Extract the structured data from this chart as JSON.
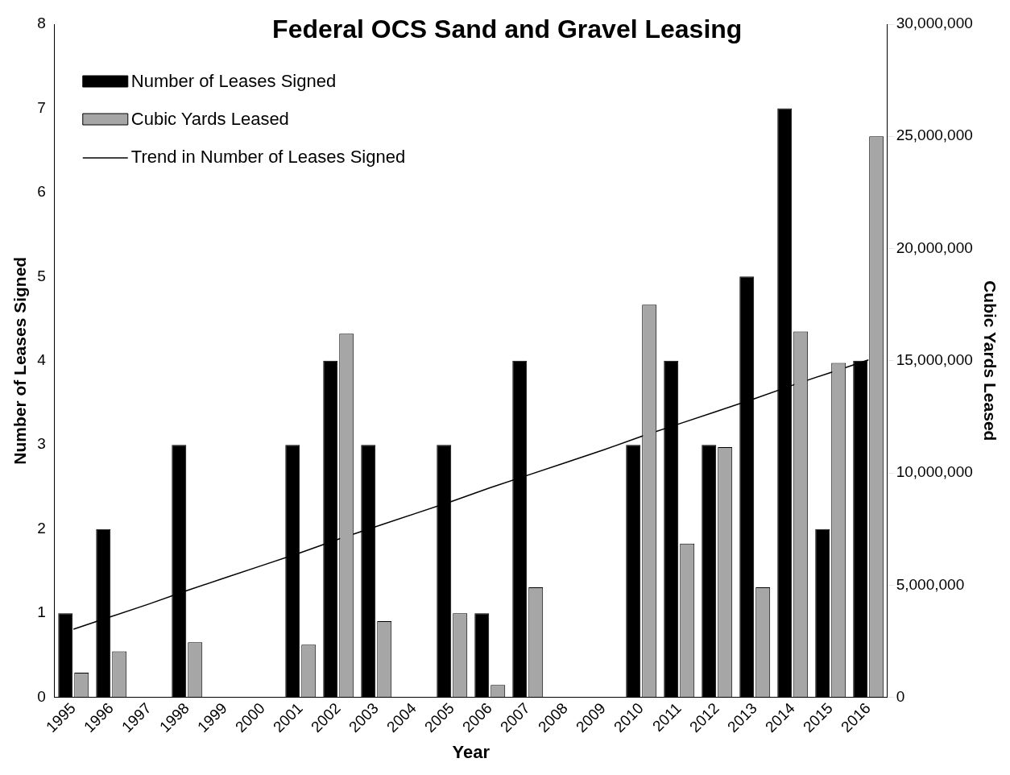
{
  "chart_data": {
    "type": "bar",
    "title": "Federal OCS Sand and Gravel Leasing",
    "xlabel": "Year",
    "ylabel": "Number of Leases Signed",
    "y2label": "Cubic Yards Leased",
    "categories": [
      "1995",
      "1996",
      "1997",
      "1998",
      "1999",
      "2000",
      "2001",
      "2002",
      "2003",
      "2004",
      "2005",
      "2006",
      "2007",
      "2008",
      "2009",
      "2010",
      "2011",
      "2012",
      "2013",
      "2014",
      "2015",
      "2016"
    ],
    "series": [
      {
        "name": "Number of Leases Signed",
        "color": "#000000",
        "values": [
          1,
          2,
          0,
          3,
          0,
          0,
          3,
          4,
          3,
          0,
          3,
          1,
          4,
          0,
          0,
          3,
          4,
          3,
          5,
          7,
          2,
          4
        ]
      },
      {
        "name": "Cubic Yards Leased",
        "color": "#a6a6a6",
        "axis": "y2",
        "values": [
          1100000,
          2050000,
          0,
          2450000,
          0,
          0,
          2350000,
          16200000,
          3400000,
          0,
          3750000,
          550000,
          4900000,
          0,
          0,
          17500000,
          6850000,
          11150000,
          4900000,
          16300000,
          14900000,
          25000000
        ]
      },
      {
        "name": "Trend in Number of Leases Signed",
        "type": "line",
        "color": "#000000",
        "values": [
          0.81,
          0.96,
          1.11,
          1.27,
          1.42,
          1.57,
          1.72,
          1.88,
          2.03,
          2.18,
          2.33,
          2.49,
          2.64,
          2.79,
          2.94,
          3.1,
          3.25,
          3.4,
          3.55,
          3.71,
          3.86,
          4.01
        ]
      }
    ],
    "ylim": [
      0,
      8
    ],
    "yticks": [
      0,
      1,
      2,
      3,
      4,
      5,
      6,
      7,
      8
    ],
    "y2lim": [
      0,
      30000000
    ],
    "y2ticks": [
      {
        "value": 0,
        "label": "0"
      },
      {
        "value": 5000000,
        "label": "5,000,000"
      },
      {
        "value": 10000000,
        "label": "10,000,000"
      },
      {
        "value": 15000000,
        "label": "15,000,000"
      },
      {
        "value": 20000000,
        "label": "20,000,000"
      },
      {
        "value": 25000000,
        "label": "25,000,000"
      },
      {
        "value": 30000000,
        "label": "30,000,000"
      }
    ],
    "legend": "top left",
    "grid": false
  }
}
